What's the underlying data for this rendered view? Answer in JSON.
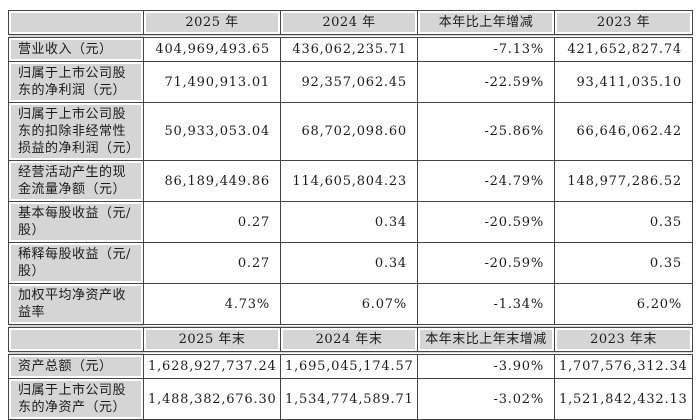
{
  "colors": {
    "cell_fill_gray": "#d5d5d5",
    "grid_border": "#454545",
    "text": "#1c1c1c",
    "background": "#ffffff"
  },
  "table": {
    "sections": [
      {
        "header": [
          "",
          "2025 年",
          "2024 年",
          "本年比上年增减",
          "2023 年"
        ],
        "rows": [
          {
            "label": "营业收入（元）",
            "values": [
              "404,969,493.65",
              "436,062,235.71",
              "-7.13%",
              "421,652,827.74"
            ]
          },
          {
            "label": "归属于上市公司股东的净利润（元）",
            "values": [
              "71,490,913.01",
              "92,357,062.45",
              "-22.59%",
              "93,411,035.10"
            ]
          },
          {
            "label": "归属于上市公司股东的扣除非经常性损益的净利润（元）",
            "values": [
              "50,933,053.04",
              "68,702,098.60",
              "-25.86%",
              "66,646,062.42"
            ]
          },
          {
            "label": "经营活动产生的现金流量净额（元）",
            "values": [
              "86,189,449.86",
              "114,605,804.23",
              "-24.79%",
              "148,977,286.52"
            ]
          },
          {
            "label": "基本每股收益（元/股）",
            "values": [
              "0.27",
              "0.34",
              "-20.59%",
              "0.35"
            ]
          },
          {
            "label": "稀释每股收益（元/股）",
            "values": [
              "0.27",
              "0.34",
              "-20.59%",
              "0.35"
            ]
          },
          {
            "label": "加权平均净资产收益率",
            "values": [
              "4.73%",
              "6.07%",
              "-1.34%",
              "6.20%"
            ]
          }
        ]
      },
      {
        "header": [
          "",
          "2025 年末",
          "2024 年末",
          "本年末比上年末增减",
          "2023 年末"
        ],
        "rows": [
          {
            "label": "资产总额（元）",
            "values": [
              "1,628,927,737.24",
              "1,695,045,174.57",
              "-3.90%",
              "1,707,576,312.34"
            ]
          },
          {
            "label": "归属于上市公司股东的净资产（元）",
            "values": [
              "1,488,382,676.30",
              "1,534,774,589.71",
              "-3.02%",
              "1,521,842,432.13"
            ]
          }
        ]
      }
    ]
  }
}
